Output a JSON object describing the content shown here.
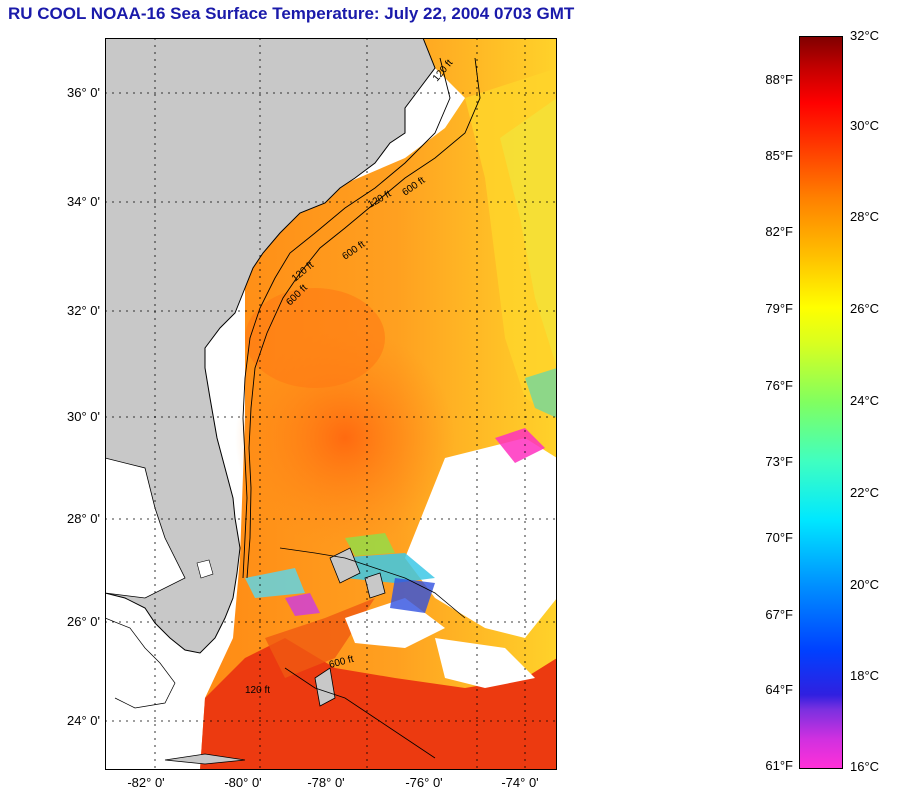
{
  "title": "RU COOL  NOAA-16  Sea Surface Temperature:  July 22, 2004 0703 GMT",
  "map": {
    "lat_labels": [
      "36° 0'",
      "34° 0'",
      "32° 0'",
      "30° 0'",
      "28° 0'",
      "26° 0'",
      "24° 0'"
    ],
    "lon_labels": [
      "-82° 0'",
      "-80° 0'",
      "-78° 0'",
      "-76° 0'",
      "-74° 0'"
    ],
    "contour_labels": [
      "120 ft",
      "600 ft",
      "120 ft",
      "600 ft",
      "120 ft",
      "600 ft",
      "600 ft",
      "120 ft"
    ],
    "colors": {
      "land": "#c8c8c8",
      "no_data": "#ffffff",
      "warm_sst": "#ff9a1a",
      "hot_sst": "#e83010",
      "cool_sst": "#ffe020"
    }
  },
  "colorbar": {
    "fahrenheit_labels": [
      "88°F",
      "85°F",
      "82°F",
      "79°F",
      "76°F",
      "73°F",
      "70°F",
      "67°F",
      "64°F",
      "61°F"
    ],
    "celsius_labels": [
      "32°C",
      "30°C",
      "28°C",
      "26°C",
      "24°C",
      "22°C",
      "20°C",
      "18°C",
      "16°C"
    ],
    "range_celsius": [
      16,
      32
    ]
  }
}
